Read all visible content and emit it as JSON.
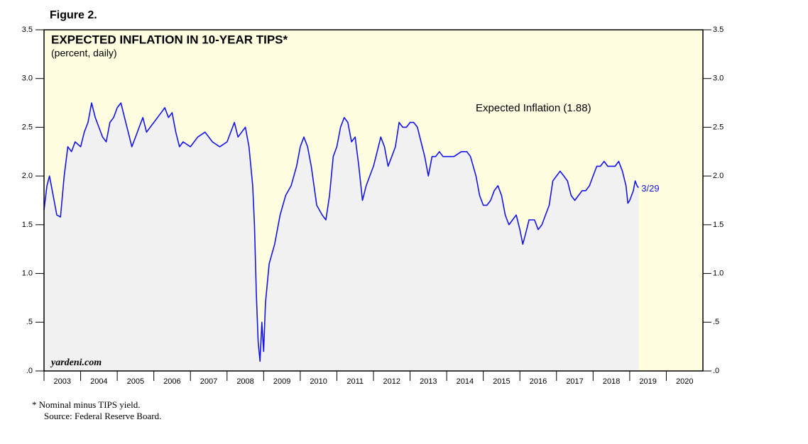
{
  "chart_data": {
    "type": "line",
    "figure_label": "Figure 2.",
    "title": "EXPECTED INFLATION IN 10-YEAR TIPS*",
    "subtitle": "(percent, daily)",
    "watermark": "yardeni.com",
    "end_label": "3/29",
    "footnotes": [
      "*  Nominal minus TIPS yield.",
      "Source: Federal Reserve Board."
    ],
    "x": [
      2003.0,
      2003.08,
      2003.15,
      2003.25,
      2003.35,
      2003.45,
      2003.55,
      2003.65,
      2003.75,
      2003.85,
      2004.0,
      2004.1,
      2004.2,
      2004.3,
      2004.4,
      2004.5,
      2004.6,
      2004.7,
      2004.8,
      2004.9,
      2005.0,
      2005.1,
      2005.2,
      2005.3,
      2005.4,
      2005.5,
      2005.6,
      2005.7,
      2005.8,
      2005.9,
      2006.0,
      2006.1,
      2006.2,
      2006.3,
      2006.4,
      2006.5,
      2006.6,
      2006.7,
      2006.8,
      2007.0,
      2007.2,
      2007.4,
      2007.6,
      2007.8,
      2008.0,
      2008.2,
      2008.3,
      2008.5,
      2008.6,
      2008.7,
      2008.75,
      2008.8,
      2008.85,
      2008.9,
      2008.95,
      2009.0,
      2009.05,
      2009.15,
      2009.3,
      2009.45,
      2009.6,
      2009.75,
      2009.9,
      2010.0,
      2010.1,
      2010.2,
      2010.3,
      2010.45,
      2010.6,
      2010.7,
      2010.8,
      2010.9,
      2011.0,
      2011.1,
      2011.2,
      2011.3,
      2011.4,
      2011.5,
      2011.6,
      2011.7,
      2011.8,
      2011.9,
      2012.0,
      2012.1,
      2012.2,
      2012.3,
      2012.4,
      2012.5,
      2012.6,
      2012.7,
      2012.8,
      2012.9,
      2013.0,
      2013.1,
      2013.2,
      2013.3,
      2013.4,
      2013.5,
      2013.6,
      2013.7,
      2013.8,
      2013.9,
      2014.0,
      2014.2,
      2014.4,
      2014.55,
      2014.65,
      2014.8,
      2014.9,
      2015.0,
      2015.1,
      2015.2,
      2015.3,
      2015.4,
      2015.5,
      2015.6,
      2015.7,
      2015.8,
      2015.9,
      2016.0,
      2016.08,
      2016.15,
      2016.25,
      2016.4,
      2016.5,
      2016.6,
      2016.7,
      2016.8,
      2016.9,
      2017.0,
      2017.1,
      2017.2,
      2017.3,
      2017.4,
      2017.5,
      2017.6,
      2017.7,
      2017.8,
      2017.9,
      2018.0,
      2018.1,
      2018.2,
      2018.3,
      2018.4,
      2018.5,
      2018.6,
      2018.7,
      2018.8,
      2018.9,
      2018.95,
      2019.0,
      2019.1,
      2019.15,
      2019.2,
      2019.24
    ],
    "series": [
      {
        "name": "Expected Inflation (1.88)",
        "color": "#1414e6",
        "values": [
          1.65,
          1.9,
          2.0,
          1.8,
          1.6,
          1.58,
          2.0,
          2.3,
          2.25,
          2.35,
          2.3,
          2.45,
          2.55,
          2.75,
          2.6,
          2.5,
          2.4,
          2.35,
          2.55,
          2.6,
          2.7,
          2.75,
          2.6,
          2.45,
          2.3,
          2.4,
          2.5,
          2.6,
          2.45,
          2.5,
          2.55,
          2.6,
          2.65,
          2.7,
          2.6,
          2.65,
          2.45,
          2.3,
          2.35,
          2.3,
          2.4,
          2.45,
          2.35,
          2.3,
          2.35,
          2.55,
          2.4,
          2.5,
          2.3,
          1.9,
          1.5,
          0.8,
          0.3,
          0.1,
          0.5,
          0.2,
          0.7,
          1.1,
          1.3,
          1.6,
          1.8,
          1.9,
          2.1,
          2.3,
          2.4,
          2.3,
          2.1,
          1.7,
          1.6,
          1.55,
          1.8,
          2.2,
          2.3,
          2.5,
          2.6,
          2.55,
          2.35,
          2.4,
          2.1,
          1.75,
          1.9,
          2.0,
          2.1,
          2.25,
          2.4,
          2.3,
          2.1,
          2.2,
          2.3,
          2.55,
          2.5,
          2.5,
          2.55,
          2.55,
          2.5,
          2.35,
          2.2,
          2.0,
          2.2,
          2.2,
          2.25,
          2.2,
          2.2,
          2.2,
          2.25,
          2.25,
          2.2,
          2.0,
          1.8,
          1.7,
          1.7,
          1.75,
          1.85,
          1.9,
          1.8,
          1.6,
          1.5,
          1.55,
          1.6,
          1.45,
          1.3,
          1.4,
          1.55,
          1.55,
          1.45,
          1.5,
          1.6,
          1.7,
          1.95,
          2.0,
          2.05,
          2.0,
          1.95,
          1.8,
          1.75,
          1.8,
          1.85,
          1.85,
          1.9,
          2.0,
          2.1,
          2.1,
          2.15,
          2.1,
          2.1,
          2.1,
          2.15,
          2.05,
          1.9,
          1.72,
          1.75,
          1.85,
          1.95,
          1.9,
          1.88
        ]
      }
    ],
    "xlim": [
      2003,
      2021
    ],
    "xticks": [
      {
        "value": 2003.5,
        "label": "2003"
      },
      {
        "value": 2004.5,
        "label": "2004"
      },
      {
        "value": 2005.5,
        "label": "2005"
      },
      {
        "value": 2006.5,
        "label": "2006"
      },
      {
        "value": 2007.5,
        "label": "2007"
      },
      {
        "value": 2008.5,
        "label": "2008"
      },
      {
        "value": 2009.5,
        "label": "2009"
      },
      {
        "value": 2010.5,
        "label": "2010"
      },
      {
        "value": 2011.5,
        "label": "2011"
      },
      {
        "value": 2012.5,
        "label": "2012"
      },
      {
        "value": 2013.5,
        "label": "2013"
      },
      {
        "value": 2014.5,
        "label": "2014"
      },
      {
        "value": 2015.5,
        "label": "2015"
      },
      {
        "value": 2016.5,
        "label": "2016"
      },
      {
        "value": 2017.5,
        "label": "2017"
      },
      {
        "value": 2018.5,
        "label": "2018"
      },
      {
        "value": 2019.5,
        "label": "2019"
      },
      {
        "value": 2020.5,
        "label": "2020"
      }
    ],
    "ylim": [
      0,
      3.5
    ],
    "yticks": [
      {
        "value": 0,
        "label": ".0"
      },
      {
        "value": 0.5,
        "label": ".5"
      },
      {
        "value": 1,
        "label": "1.0"
      },
      {
        "value": 1.5,
        "label": "1.5"
      },
      {
        "value": 2,
        "label": "2.0"
      },
      {
        "value": 2.5,
        "label": "2.5"
      },
      {
        "value": 3,
        "label": "3.0"
      },
      {
        "value": 3.5,
        "label": "3.5"
      }
    ],
    "background_color": "#fffde0",
    "area_color": "#f1f1f1"
  }
}
